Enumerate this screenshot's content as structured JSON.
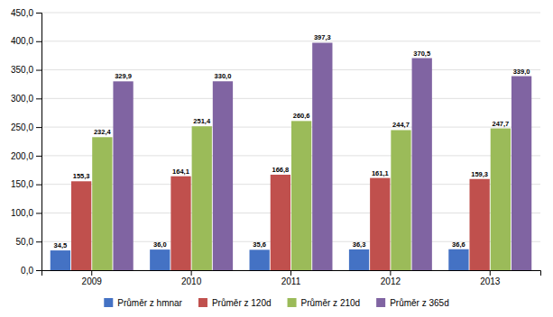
{
  "chart_data": {
    "type": "bar",
    "categories": [
      "2009",
      "2010",
      "2011",
      "2012",
      "2013"
    ],
    "series": [
      {
        "name": "Průměr z hmnar",
        "color": "#4472C4",
        "values": [
          34.5,
          36.0,
          35.6,
          36.3,
          36.6
        ],
        "value_labels": [
          "34,5",
          "36,0",
          "35,6",
          "36,3",
          "36,6"
        ]
      },
      {
        "name": "Průměr z 120d",
        "color": "#C0504D",
        "values": [
          155.3,
          164.1,
          166.8,
          161.1,
          159.3
        ],
        "value_labels": [
          "155,3",
          "164,1",
          "166,8",
          "161,1",
          "159,3"
        ]
      },
      {
        "name": "Průměr z 210d",
        "color": "#9BBB59",
        "values": [
          232.4,
          251.4,
          260.6,
          244.7,
          247.7
        ],
        "value_labels": [
          "232,4",
          "251,4",
          "260,6",
          "244,7",
          "247,7"
        ]
      },
      {
        "name": "Průměr z 365d",
        "color": "#8064A2",
        "values": [
          329.9,
          330.0,
          397.3,
          370.5,
          339.0
        ],
        "value_labels": [
          "329,9",
          "330,0",
          "397,3",
          "370,5",
          "339,0"
        ]
      }
    ],
    "ylim": [
      0,
      450
    ],
    "yticks": [
      {
        "value": 0,
        "label": "0,0"
      },
      {
        "value": 50,
        "label": "50,0"
      },
      {
        "value": 100,
        "label": "100,0"
      },
      {
        "value": 150,
        "label": "150,0"
      },
      {
        "value": 200,
        "label": "200,0"
      },
      {
        "value": 250,
        "label": "250,0"
      },
      {
        "value": 300,
        "label": "300,0"
      },
      {
        "value": 350,
        "label": "350,0"
      },
      {
        "value": 400,
        "label": "400,0"
      },
      {
        "value": 450,
        "label": "450,0"
      }
    ],
    "grid": true,
    "data_labels": true,
    "legend": "bottom"
  }
}
